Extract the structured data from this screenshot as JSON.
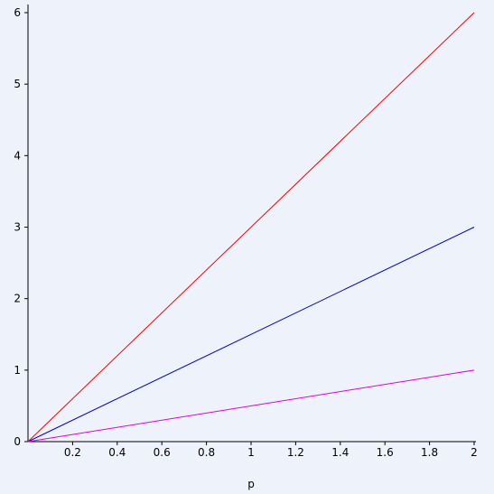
{
  "chart_data": {
    "type": "line",
    "x_label": "p",
    "x": [
      0,
      2
    ],
    "series": [
      {
        "color": "#ff0000",
        "values": [
          0,
          6
        ]
      },
      {
        "color": "#0000cc",
        "values": [
          0,
          3
        ]
      },
      {
        "color": "#e000e0",
        "values": [
          0,
          1
        ]
      }
    ],
    "xlim": [
      0,
      2
    ],
    "ylim": [
      0,
      6
    ],
    "xticks": [
      0.2,
      0.4,
      0.6,
      0.8,
      1,
      1.2,
      1.4,
      1.6,
      1.8,
      2
    ],
    "yticks": [
      0,
      1,
      2,
      3,
      4,
      5,
      6
    ],
    "grid": false
  }
}
